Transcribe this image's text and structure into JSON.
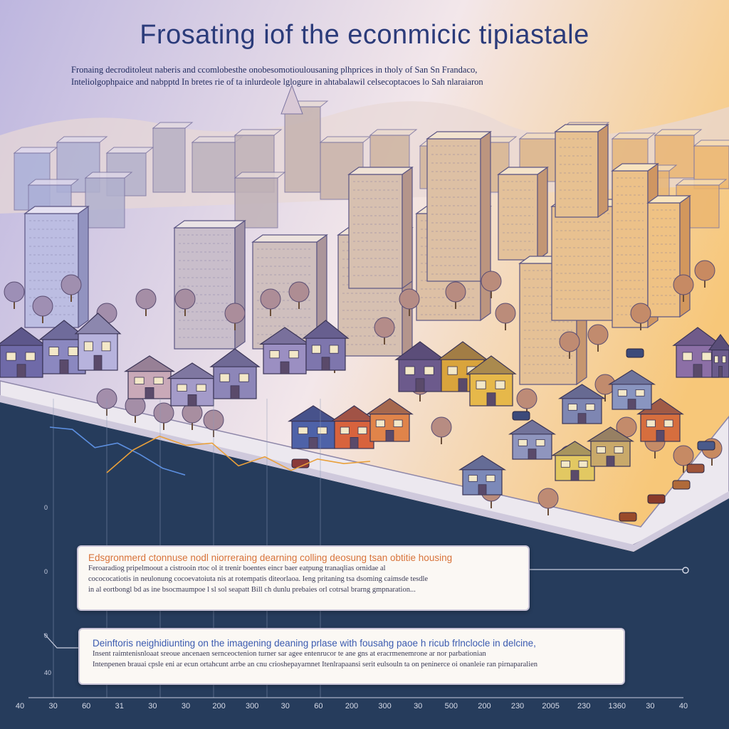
{
  "header": {
    "title": "Frosating iof the econmicic tipiastale",
    "subtitle_lines": [
      "Fronaing decroditoleut naberis and ccomlobesthe onobesomotioulousaning plhprices in tholy of San Sn Frandaco,",
      "Inteliolgophpaice and nabpptd In bretes rie of ta inlurdeole lglogure in ahtabalawil celsecoptacoes lo Sah nlaraiaron"
    ]
  },
  "colors": {
    "sky_left": "#b9b2dc",
    "sky_right": "#f6c77a",
    "chart_bg": "#263c5c",
    "series_blue": "#5c8fe0",
    "series_orange": "#e9a03a"
  },
  "chart_data": {
    "type": "line",
    "series": [
      {
        "color": "series_blue",
        "values": [
          100,
          98,
          82,
          86,
          76,
          64,
          58
        ]
      },
      {
        "color": "series_orange",
        "values": [
          60,
          80,
          92,
          84,
          86,
          66,
          74,
          62,
          72,
          68,
          70
        ]
      }
    ],
    "x_tick_labels": [
      "40",
      "30",
      "60",
      "31",
      "30",
      "30",
      "200",
      "300",
      "30",
      "60",
      "200",
      "300",
      "30",
      "500",
      "200",
      "230",
      "2005",
      "230",
      "1360",
      "30",
      "40"
    ],
    "y_tick_labels": [
      "0",
      "0",
      "0",
      "40"
    ],
    "grid": true
  },
  "cards": [
    {
      "title": "Edsgronmerd ctonnuse nodl niorreraing dearning colling deosung tsan obtitie housing",
      "lines": [
        "Feroaradiog pripelmoout a cistrooin rtoc ol it trenir boentes eincr baer eatpung tranaqlias ornidae al",
        "cocococatiotis in neulonung cocoevatoiuta nis at rotempatis diteorlaoa. Ieng pritaning tsa dsoming caimsde tesdle",
        "in al eortbongl bd as ine bsocmaumpoe l sl sol seapatt Bill ch dunlu prebaies orl cotrsal brarng gmpnaration..."
      ]
    },
    {
      "title": "Deinftoris neighidiunting on the imagening deaning prlase with fousahg paoe h ricub frlnclocle in delcine,",
      "lines": [
        "Insent raimtenisnloaat sreoue ancenaen sernceoctenion turner sar agee entenrucor te ane gns at eracrmenemrone ar nor parbationian",
        "Intenpenen brauai cpsle eni ar ecun ortahcunt arrbe an cnu crioshepayarnnet Itenlrapaansi serit eulsouln ta on peninerce oi onanleie ran pirnaparalien"
      ]
    }
  ]
}
